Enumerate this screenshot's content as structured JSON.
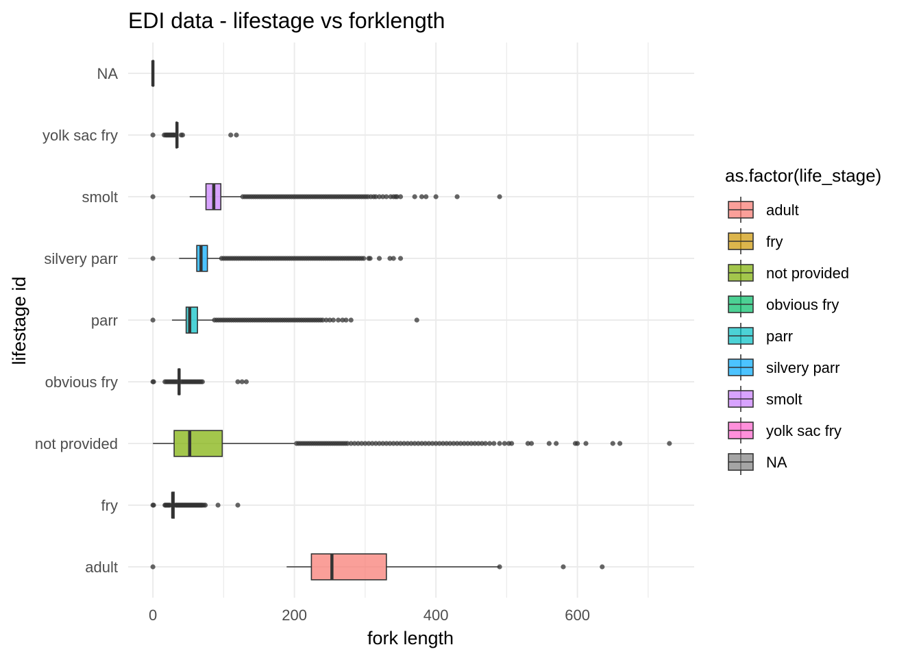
{
  "chart_data": {
    "type": "boxplot",
    "orientation": "horizontal",
    "title": "EDI data - lifestage vs forklength",
    "xlabel": "fork length",
    "ylabel": "lifestage id",
    "xlim": [
      -35,
      765
    ],
    "x_ticks": [
      0,
      200,
      400,
      600
    ],
    "grid": true,
    "legend": {
      "title": "as.factor(life_stage)",
      "position": "right",
      "entries": [
        {
          "label": "adult",
          "color": "#F8766D"
        },
        {
          "label": "fry",
          "color": "#CD9600"
        },
        {
          "label": "not provided",
          "color": "#7CAE00"
        },
        {
          "label": "obvious fry",
          "color": "#00BE67"
        },
        {
          "label": "parr",
          "color": "#00BFC4"
        },
        {
          "label": "silvery parr",
          "color": "#00A9FF"
        },
        {
          "label": "smolt",
          "color": "#C77CFF"
        },
        {
          "label": "yolk sac fry",
          "color": "#FF61CC"
        },
        {
          "label": "NA",
          "color": "#7F7F7F"
        }
      ]
    },
    "categories": [
      "adult",
      "fry",
      "not provided",
      "obvious fry",
      "parr",
      "silvery parr",
      "smolt",
      "yolk sac fry",
      "NA"
    ],
    "series": [
      {
        "category": "adult",
        "color": "#F8766D",
        "whisker_low": 189,
        "q1": 224,
        "median": 253,
        "q3": 330,
        "whisker_high": 490,
        "outliers": [
          0,
          490,
          580,
          635
        ]
      },
      {
        "category": "fry",
        "color": "#CD9600",
        "whisker_low": 26,
        "q1": 27,
        "median": 28,
        "q3": 30,
        "whisker_high": 31,
        "outliers": [
          0,
          1,
          17,
          18,
          19,
          20,
          21,
          22,
          23,
          24,
          32,
          33,
          34,
          35,
          36,
          37,
          38,
          39,
          40,
          41,
          42,
          43,
          44,
          45,
          46,
          47,
          48,
          49,
          50,
          51,
          52,
          53,
          54,
          55,
          56,
          57,
          58,
          59,
          60,
          61,
          62,
          63,
          64,
          65,
          66,
          67,
          68,
          69,
          70,
          72,
          74,
          92,
          120
        ]
      },
      {
        "category": "not provided",
        "color": "#7CAE00",
        "whisker_low": 0,
        "q1": 30,
        "median": 52,
        "q3": 98,
        "whisker_high": 200,
        "outliers": [
          203,
          206,
          209,
          212,
          215,
          218,
          221,
          224,
          227,
          230,
          233,
          236,
          239,
          242,
          245,
          248,
          251,
          254,
          257,
          260,
          263,
          266,
          269,
          272,
          275,
          280,
          285,
          290,
          295,
          300,
          305,
          310,
          315,
          320,
          325,
          330,
          335,
          340,
          345,
          350,
          355,
          360,
          365,
          370,
          375,
          380,
          385,
          390,
          395,
          400,
          405,
          410,
          415,
          420,
          425,
          430,
          435,
          440,
          445,
          450,
          455,
          460,
          465,
          470,
          476,
          482,
          490,
          497,
          503,
          507,
          530,
          535,
          560,
          570,
          597,
          600,
          612,
          650,
          660,
          730
        ]
      },
      {
        "category": "obvious fry",
        "color": "#00BE67",
        "whisker_low": 36,
        "q1": 36,
        "median": 37,
        "q3": 38,
        "whisker_high": 38,
        "outliers": [
          0,
          1,
          17,
          19,
          21,
          23,
          25,
          27,
          29,
          31,
          33,
          35,
          40,
          42,
          44,
          46,
          48,
          50,
          52,
          54,
          56,
          58,
          60,
          62,
          64,
          66,
          68,
          70,
          120,
          126,
          132
        ]
      },
      {
        "category": "parr",
        "color": "#00BFC4",
        "whisker_low": 27,
        "q1": 47,
        "median": 52,
        "q3": 63,
        "whisker_high": 86,
        "outliers": [
          0,
          87,
          90,
          93,
          96,
          99,
          102,
          105,
          108,
          111,
          114,
          117,
          120,
          123,
          126,
          129,
          132,
          135,
          138,
          141,
          144,
          147,
          150,
          153,
          156,
          159,
          162,
          165,
          168,
          171,
          174,
          177,
          180,
          183,
          186,
          189,
          192,
          195,
          198,
          201,
          204,
          207,
          210,
          213,
          216,
          219,
          222,
          225,
          228,
          231,
          234,
          237,
          240,
          245,
          250,
          255,
          262,
          268,
          273,
          280,
          373
        ]
      },
      {
        "category": "silvery parr",
        "color": "#00A9FF",
        "whisker_low": 37,
        "q1": 62,
        "median": 68,
        "q3": 77,
        "whisker_high": 96,
        "outliers": [
          0,
          97,
          100,
          103,
          106,
          109,
          112,
          115,
          118,
          121,
          124,
          127,
          130,
          133,
          136,
          139,
          142,
          145,
          148,
          151,
          154,
          157,
          160,
          163,
          166,
          169,
          172,
          175,
          178,
          181,
          184,
          187,
          190,
          193,
          196,
          199,
          202,
          205,
          208,
          211,
          214,
          217,
          220,
          223,
          226,
          229,
          232,
          235,
          238,
          241,
          244,
          247,
          250,
          253,
          256,
          259,
          262,
          265,
          268,
          271,
          274,
          277,
          280,
          283,
          286,
          289,
          292,
          295,
          298,
          305,
          307,
          320,
          335,
          340,
          350
        ]
      },
      {
        "category": "smolt",
        "color": "#C77CFF",
        "whisker_low": 52,
        "q1": 75,
        "median": 86,
        "q3": 96,
        "whisker_high": 125,
        "outliers": [
          0,
          127,
          130,
          133,
          136,
          139,
          142,
          145,
          148,
          151,
          154,
          157,
          160,
          163,
          166,
          169,
          172,
          175,
          178,
          181,
          184,
          187,
          190,
          193,
          196,
          199,
          202,
          205,
          208,
          211,
          214,
          217,
          220,
          223,
          226,
          229,
          232,
          235,
          238,
          241,
          244,
          247,
          250,
          253,
          256,
          259,
          262,
          265,
          268,
          271,
          274,
          277,
          280,
          283,
          286,
          289,
          292,
          295,
          298,
          301,
          304,
          308,
          312,
          315,
          320,
          325,
          330,
          336,
          340,
          343,
          345,
          350,
          370,
          380,
          386,
          400,
          430,
          490
        ]
      },
      {
        "category": "yolk sac fry",
        "color": "#FF61CC",
        "whisker_low": 32,
        "q1": 33,
        "median": 34,
        "q3": 34,
        "whisker_high": 35,
        "outliers": [
          0,
          16,
          18,
          19,
          20,
          21,
          22,
          23,
          24,
          25,
          26,
          27,
          28,
          29,
          30,
          31,
          40,
          42,
          110,
          118
        ]
      },
      {
        "category": "NA",
        "color": "#7F7F7F",
        "whisker_low": 0,
        "q1": 0,
        "median": 0,
        "q3": 0,
        "whisker_high": 0,
        "outliers": []
      }
    ]
  }
}
